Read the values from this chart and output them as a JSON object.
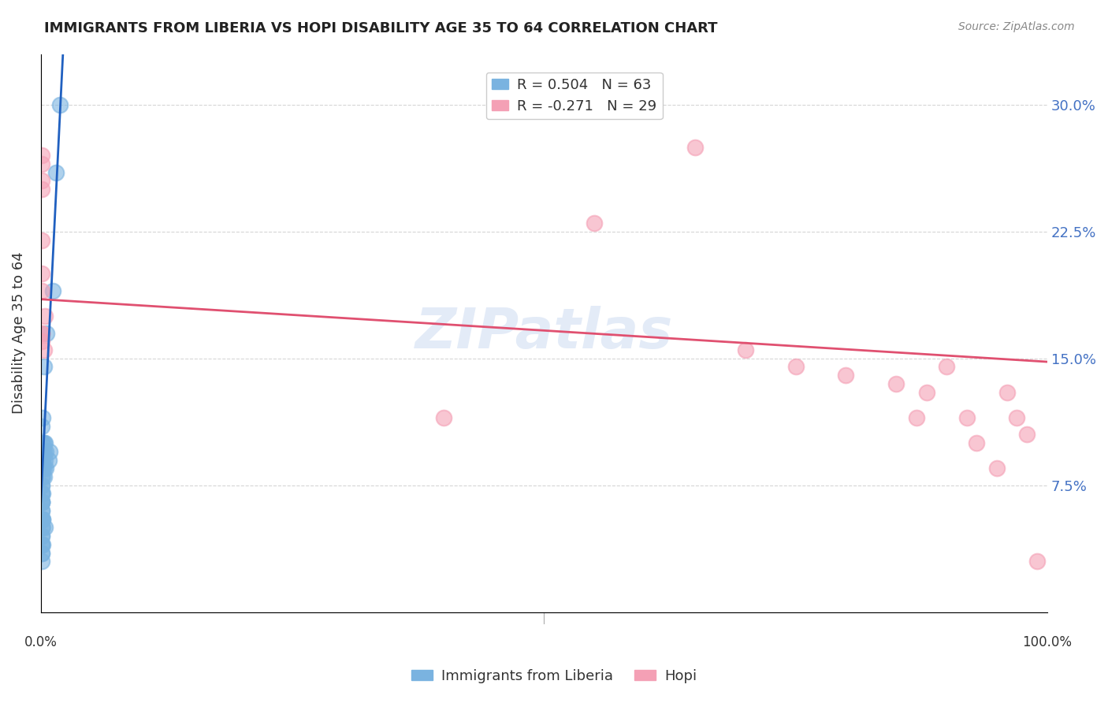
{
  "title": "IMMIGRANTS FROM LIBERIA VS HOPI DISABILITY AGE 35 TO 64 CORRELATION CHART",
  "source": "Source: ZipAtlas.com",
  "ylabel": "Disability Age 35 to 64",
  "ytick_labels": [
    "7.5%",
    "15.0%",
    "22.5%",
    "30.0%"
  ],
  "ytick_values": [
    0.075,
    0.15,
    0.225,
    0.3
  ],
  "xlim": [
    0.0,
    1.0
  ],
  "ylim": [
    0.0,
    0.33
  ],
  "legend_r1": "R = 0.504   N = 63",
  "legend_r2": "R = -0.271   N = 29",
  "color_blue": "#7ab3e0",
  "color_pink": "#f4a0b5",
  "line_color_blue": "#2060c0",
  "line_color_pink": "#e05070",
  "watermark": "ZIPatlas",
  "blue_x": [
    0.001,
    0.002,
    0.003,
    0.001,
    0.002,
    0.004,
    0.001,
    0.003,
    0.002,
    0.001,
    0.001,
    0.002,
    0.001,
    0.001,
    0.002,
    0.001,
    0.001,
    0.003,
    0.001,
    0.002,
    0.001,
    0.001,
    0.002,
    0.001,
    0.001,
    0.002,
    0.001,
    0.001,
    0.003,
    0.001,
    0.001,
    0.002,
    0.001,
    0.001,
    0.001,
    0.002,
    0.001,
    0.001,
    0.001,
    0.002,
    0.001,
    0.004,
    0.001,
    0.001,
    0.002,
    0.001,
    0.001,
    0.001,
    0.001,
    0.002,
    0.009,
    0.008,
    0.005,
    0.005,
    0.004,
    0.006,
    0.012,
    0.015,
    0.019,
    0.003,
    0.001,
    0.001,
    0.001
  ],
  "blue_y": [
    0.1,
    0.09,
    0.1,
    0.11,
    0.115,
    0.09,
    0.095,
    0.095,
    0.1,
    0.095,
    0.085,
    0.095,
    0.085,
    0.09,
    0.095,
    0.085,
    0.09,
    0.085,
    0.085,
    0.09,
    0.08,
    0.085,
    0.08,
    0.085,
    0.075,
    0.085,
    0.07,
    0.075,
    0.08,
    0.07,
    0.065,
    0.07,
    0.065,
    0.06,
    0.065,
    0.055,
    0.06,
    0.055,
    0.05,
    0.055,
    0.045,
    0.05,
    0.045,
    0.04,
    0.05,
    0.035,
    0.04,
    0.035,
    0.03,
    0.04,
    0.095,
    0.09,
    0.085,
    0.095,
    0.1,
    0.165,
    0.19,
    0.26,
    0.3,
    0.145,
    0.085,
    0.065,
    0.055
  ],
  "pink_x": [
    0.001,
    0.001,
    0.001,
    0.001,
    0.001,
    0.001,
    0.001,
    0.004,
    0.001,
    0.001,
    0.001,
    0.003,
    0.4,
    0.55,
    0.65,
    0.7,
    0.75,
    0.8,
    0.85,
    0.87,
    0.88,
    0.9,
    0.92,
    0.93,
    0.95,
    0.96,
    0.97,
    0.98,
    0.99
  ],
  "pink_y": [
    0.27,
    0.265,
    0.255,
    0.25,
    0.22,
    0.2,
    0.19,
    0.175,
    0.165,
    0.165,
    0.16,
    0.155,
    0.115,
    0.23,
    0.275,
    0.155,
    0.145,
    0.14,
    0.135,
    0.115,
    0.13,
    0.145,
    0.115,
    0.1,
    0.085,
    0.13,
    0.115,
    0.105,
    0.03
  ],
  "blue_line_x": [
    0.0,
    0.022
  ],
  "blue_line_y": [
    0.065,
    0.33
  ],
  "pink_line_x": [
    0.0,
    1.0
  ],
  "pink_line_y": [
    0.185,
    0.148
  ]
}
